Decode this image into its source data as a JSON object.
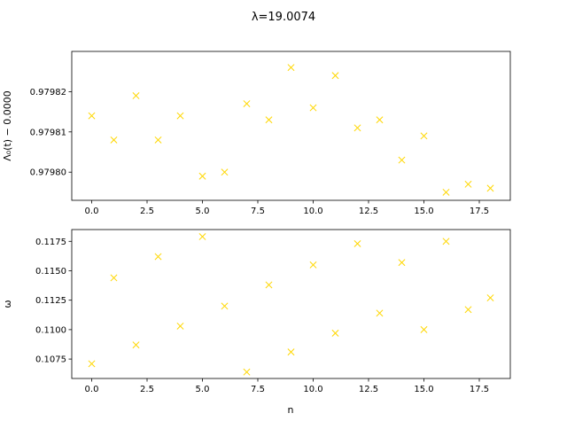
{
  "figure": {
    "title": "λ=19.0074",
    "marker_color": "#ffd700"
  },
  "chart_data": [
    {
      "type": "scatter",
      "marker": "x",
      "ylabel": "Λ₀(t) − 0.0000",
      "xlabel": "",
      "xlim": [
        -0.9,
        18.9
      ],
      "ylim": [
        0.979793,
        0.97983
      ],
      "xticks": [
        0.0,
        2.5,
        5.0,
        7.5,
        10.0,
        12.5,
        15.0,
        17.5
      ],
      "xtick_labels": [
        "0.0",
        "2.5",
        "5.0",
        "7.5",
        "10.0",
        "12.5",
        "15.0",
        "17.5"
      ],
      "yticks": [
        0.9798,
        0.97981,
        0.97982
      ],
      "ytick_labels": [
        "0.97980",
        "0.97981",
        "0.97982"
      ],
      "x": [
        0,
        1,
        2,
        3,
        4,
        5,
        6,
        7,
        8,
        9,
        10,
        11,
        12,
        13,
        14,
        15,
        16,
        17,
        18
      ],
      "y": [
        0.979814,
        0.979808,
        0.979819,
        0.979808,
        0.979814,
        0.979799,
        0.9798,
        0.979817,
        0.979813,
        0.979826,
        0.979816,
        0.979824,
        0.979811,
        0.979813,
        0.979803,
        0.979809,
        0.979795,
        0.979797,
        0.979796
      ]
    },
    {
      "type": "scatter",
      "marker": "x",
      "ylabel": "ω",
      "xlabel": "n",
      "xlim": [
        -0.9,
        18.9
      ],
      "ylim": [
        0.10585,
        0.1185
      ],
      "xticks": [
        0.0,
        2.5,
        5.0,
        7.5,
        10.0,
        12.5,
        15.0,
        17.5
      ],
      "xtick_labels": [
        "0.0",
        "2.5",
        "5.0",
        "7.5",
        "10.0",
        "12.5",
        "15.0",
        "17.5"
      ],
      "yticks": [
        0.1075,
        0.11,
        0.1125,
        0.115,
        0.1175
      ],
      "ytick_labels": [
        "0.1075",
        "0.1100",
        "0.1125",
        "0.1150",
        "0.1175"
      ],
      "x": [
        0,
        1,
        2,
        3,
        4,
        5,
        6,
        7,
        8,
        9,
        10,
        11,
        12,
        13,
        14,
        15,
        16,
        17,
        18
      ],
      "y": [
        0.1071,
        0.1144,
        0.1087,
        0.1162,
        0.1103,
        0.1179,
        0.112,
        0.1064,
        0.1138,
        0.1081,
        0.1155,
        0.1097,
        0.1173,
        0.1114,
        0.1157,
        0.11,
        0.1175,
        0.1117,
        0.1127
      ]
    }
  ]
}
